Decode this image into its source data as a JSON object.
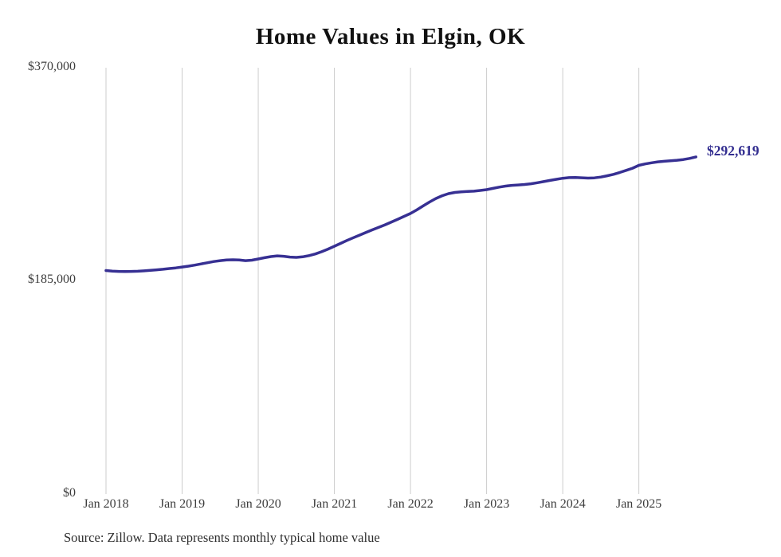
{
  "title": "Home Values in Elgin, OK",
  "source_note": "Source: Zillow. Data represents monthly typical home value",
  "chart_data": {
    "type": "line",
    "title": "Home Values in Elgin, OK",
    "unit": "USD",
    "ylim": [
      0,
      370000
    ],
    "grid": "vertical-only",
    "legend_position": "none",
    "end_label": "$292,619",
    "end_value": 292619,
    "colors": {
      "line": "#373093",
      "end_label": "#332e90",
      "gridline": "#cccccc"
    },
    "y_tick_labels": [
      "$370,000",
      "$185,000",
      "$0"
    ],
    "y_tick_values": [
      370000,
      185000,
      0
    ],
    "x_tick_labels": [
      "Jan 2018",
      "Jan 2019",
      "Jan 2020",
      "Jan 2021",
      "Jan 2022",
      "Jan 2023",
      "Jan 2024",
      "Jan 2025"
    ],
    "x_tick_month_indices": [
      0,
      12,
      24,
      36,
      48,
      60,
      72,
      84
    ],
    "x_months": [
      "2018-01",
      "2018-02",
      "2018-03",
      "2018-04",
      "2018-05",
      "2018-06",
      "2018-07",
      "2018-08",
      "2018-09",
      "2018-10",
      "2018-11",
      "2018-12",
      "2019-01",
      "2019-02",
      "2019-03",
      "2019-04",
      "2019-05",
      "2019-06",
      "2019-07",
      "2019-08",
      "2019-09",
      "2019-10",
      "2019-11",
      "2019-12",
      "2020-01",
      "2020-02",
      "2020-03",
      "2020-04",
      "2020-05",
      "2020-06",
      "2020-07",
      "2020-08",
      "2020-09",
      "2020-10",
      "2020-11",
      "2020-12",
      "2021-01",
      "2021-02",
      "2021-03",
      "2021-04",
      "2021-05",
      "2021-06",
      "2021-07",
      "2021-08",
      "2021-09",
      "2021-10",
      "2021-11",
      "2021-12",
      "2022-01",
      "2022-02",
      "2022-03",
      "2022-04",
      "2022-05",
      "2022-06",
      "2022-07",
      "2022-08",
      "2022-09",
      "2022-10",
      "2022-11",
      "2022-12",
      "2023-01",
      "2023-02",
      "2023-03",
      "2023-04",
      "2023-05",
      "2023-06",
      "2023-07",
      "2023-08",
      "2023-09",
      "2023-10",
      "2023-11",
      "2023-12",
      "2024-01",
      "2024-02",
      "2024-03",
      "2024-04",
      "2024-05",
      "2024-06",
      "2024-07",
      "2024-08",
      "2024-09",
      "2024-10",
      "2024-11",
      "2024-12",
      "2025-01",
      "2025-02",
      "2025-03",
      "2025-04",
      "2025-05",
      "2025-06",
      "2025-07",
      "2025-08",
      "2025-09",
      "2025-10"
    ],
    "values": [
      194000,
      193500,
      193200,
      193100,
      193200,
      193400,
      193700,
      194100,
      194600,
      195100,
      195700,
      196300,
      197000,
      197800,
      198700,
      199700,
      200800,
      201800,
      202600,
      203100,
      203300,
      203100,
      202600,
      203000,
      204000,
      205100,
      206100,
      206700,
      206400,
      205700,
      205400,
      205900,
      206900,
      208400,
      210300,
      212600,
      215100,
      217600,
      220100,
      222500,
      224800,
      227100,
      229300,
      231500,
      233700,
      236100,
      238500,
      241000,
      243500,
      246600,
      250100,
      253500,
      256500,
      258900,
      260700,
      261800,
      262300,
      262600,
      262900,
      263500,
      264200,
      265300,
      266400,
      267300,
      267900,
      268300,
      268700,
      269300,
      270200,
      271200,
      272200,
      273200,
      274100,
      274600,
      274800,
      274500,
      274200,
      274400,
      275100,
      276200,
      277500,
      279100,
      280900,
      282800,
      285300,
      286500,
      287500,
      288300,
      288800,
      289200,
      289700,
      290300,
      291300,
      292619
    ]
  }
}
